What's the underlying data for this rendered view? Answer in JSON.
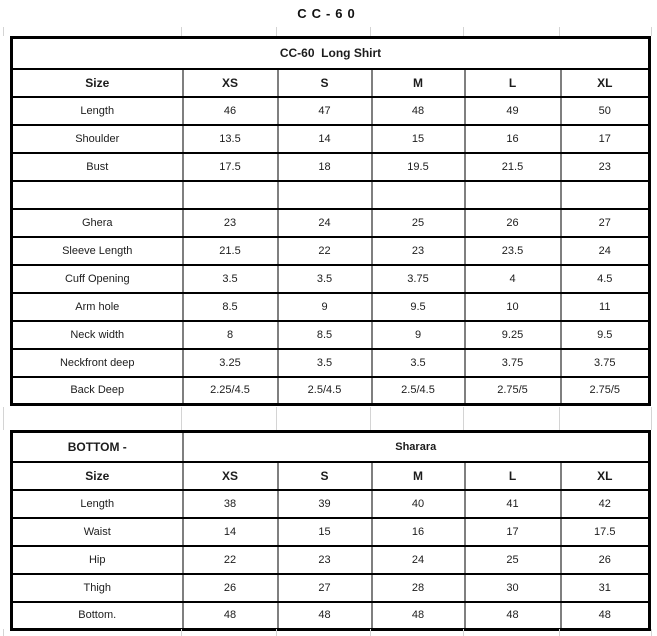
{
  "page_title": "CC-60",
  "shirt_table": {
    "title": "CC-60  Long Shirt",
    "header": [
      "Size",
      "XS",
      "S",
      "M",
      "L",
      "XL"
    ],
    "rows": [
      {
        "label": "Length",
        "values": [
          "46",
          "47",
          "48",
          "49",
          "50"
        ]
      },
      {
        "label": "Shoulder",
        "values": [
          "13.5",
          "14",
          "15",
          "16",
          "17"
        ]
      },
      {
        "label": "Bust",
        "values": [
          "17.5",
          "18",
          "19.5",
          "21.5",
          "23"
        ]
      },
      {
        "label": "",
        "values": [
          "",
          "",
          "",
          "",
          ""
        ]
      },
      {
        "label": "Ghera",
        "values": [
          "23",
          "24",
          "25",
          "26",
          "27"
        ]
      },
      {
        "label": "Sleeve Length",
        "values": [
          "21.5",
          "22",
          "23",
          "23.5",
          "24"
        ]
      },
      {
        "label": "Cuff Opening",
        "values": [
          "3.5",
          "3.5",
          "3.75",
          "4",
          "4.5"
        ]
      },
      {
        "label": "Arm hole",
        "values": [
          "8.5",
          "9",
          "9.5",
          "10",
          "11"
        ]
      },
      {
        "label": "Neck width",
        "values": [
          "8",
          "8.5",
          "9",
          "9.25",
          "9.5"
        ]
      },
      {
        "label": "Neckfront deep",
        "values": [
          "3.25",
          "3.5",
          "3.5",
          "3.75",
          "3.75"
        ]
      },
      {
        "label": "Back Deep",
        "values": [
          "2.25/4.5",
          "2.5/4.5",
          "2.5/4.5",
          "2.75/5",
          "2.75/5"
        ]
      }
    ]
  },
  "bottom_table": {
    "label": "BOTTOM -",
    "title": "Sharara",
    "header": [
      "Size",
      "XS",
      "S",
      "M",
      "L",
      "XL"
    ],
    "rows": [
      {
        "label": "Length",
        "values": [
          "38",
          "39",
          "40",
          "41",
          "42"
        ]
      },
      {
        "label": "Waist",
        "values": [
          "14",
          "15",
          "16",
          "17",
          "17.5"
        ]
      },
      {
        "label": "Hip",
        "values": [
          "22",
          "23",
          "24",
          "25",
          "26"
        ]
      },
      {
        "label": "Thigh",
        "values": [
          "26",
          "27",
          "28",
          "30",
          "31"
        ]
      },
      {
        "label": "Bottom.",
        "values": [
          "48",
          "48",
          "48",
          "48",
          "48"
        ]
      }
    ]
  },
  "colors": {
    "border_dark": "#000000",
    "border_vertical": "#7f7f7f",
    "gridline_faint": "#d4d4d4",
    "text": "#1c1c1c"
  }
}
